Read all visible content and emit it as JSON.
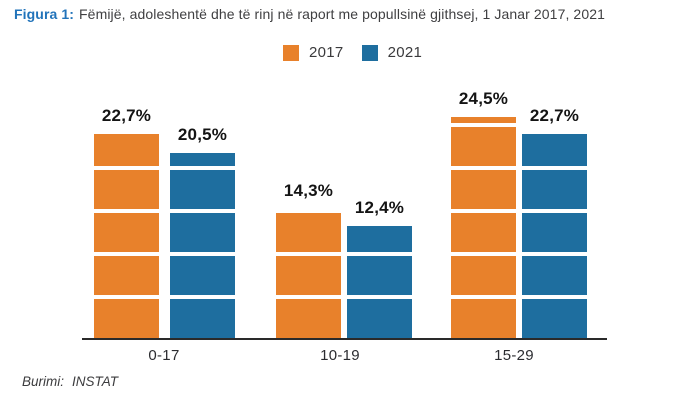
{
  "title": {
    "prefix": "Figura 1:",
    "text": "Fëmijë, adoleshentë dhe të rinj në raport me popullsinë gjithsej, 1 Janar 2017, 2021"
  },
  "chart_data": {
    "type": "bar",
    "title": "Fëmijë, adoleshentë dhe të rinj në raport me popullsinë gjithsej, 1 Janar 2017, 2021",
    "categories": [
      "0-17",
      "10-19",
      "15-29"
    ],
    "series": [
      {
        "name": "2017",
        "color": "#e8812b",
        "values": [
          22.7,
          14.3,
          24.5
        ],
        "labels": [
          "22,7%",
          "14,3%",
          "24,5%"
        ]
      },
      {
        "name": "2021",
        "color": "#1e6e9f",
        "values": [
          20.5,
          12.4,
          22.7
        ],
        "labels": [
          "20,5%",
          "12,4%",
          "22,7%"
        ]
      }
    ],
    "value_format": "percent with comma decimal",
    "xlabel": "",
    "ylabel": "",
    "ylim": [
      0,
      27
    ],
    "grid": false,
    "legend_position": "top-center",
    "bar_style": "segmented blocks with white horizontal stripes"
  },
  "legend": {
    "items": [
      {
        "label": "2017",
        "color": "#e8812b"
      },
      {
        "label": "2021",
        "color": "#1e6e9f"
      }
    ]
  },
  "footer": {
    "source_label": "Burimi:",
    "source_value": "INSTAT"
  }
}
